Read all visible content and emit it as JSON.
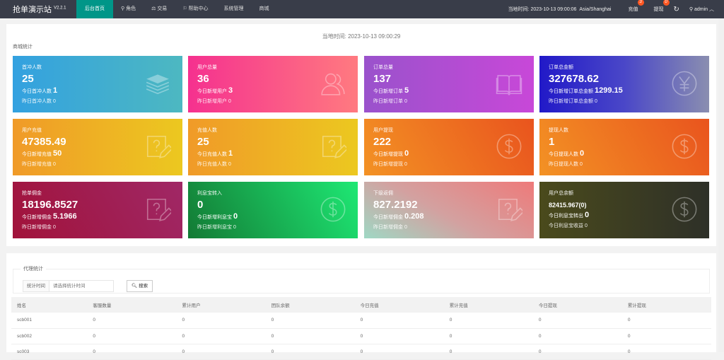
{
  "nav": {
    "brand": "抢单演示站",
    "version": "V2.2.1",
    "menu": [
      "后台首页",
      "角色",
      "交易",
      "帮助中心",
      "系统管理",
      "商城"
    ],
    "time": "当地时间: 2023-10-13 09:00:06",
    "tz": "Asia/Shanghai",
    "recharge": "充值",
    "recharge_badge": "3",
    "withdraw": "提现",
    "withdraw_badge": "0",
    "user": "admin"
  },
  "main": {
    "local_time": "当地时间:  2023-10-13 09:00:29",
    "section": "商城统计"
  },
  "cards": [
    {
      "title": "首冲人数",
      "value": "25",
      "l1": "今日首冲人数",
      "l1v": "1",
      "l2": "昨日首冲人数 0",
      "icon": "layers",
      "bg": "linear-gradient(90deg,#33a1e0,#4db8c1)"
    },
    {
      "title": "用户总量",
      "value": "36",
      "l1": "今日新增用户",
      "l1v": "3",
      "l2": "昨日新增用户 0",
      "icon": "users",
      "bg": "linear-gradient(90deg,#f5318f,#ff7a80)"
    },
    {
      "title": "订单总量",
      "value": "137",
      "l1": "今日新增订单",
      "l1v": "5",
      "l2": "昨日新增订单 0",
      "icon": "book",
      "bg": "linear-gradient(90deg,#9a52cc,#c848d8)"
    },
    {
      "title": "订单总金额",
      "value": "327678.62",
      "l1": "今日新增订单总金额",
      "l1v": "1299.15",
      "l2": "昨日新增订单总金额 0",
      "icon": "yen",
      "bg": "linear-gradient(90deg,#2119c8,#4a47c8 50%,#8a8eb0)"
    },
    {
      "title": "用户充值",
      "value": "47385.49",
      "l1": "今日新增充值",
      "l1v": "50",
      "l2": "昨日新增充值 0",
      "icon": "note",
      "bg": "linear-gradient(90deg,#f09a28,#ecc820)"
    },
    {
      "title": "充值人数",
      "value": "25",
      "l1": "今日充值人数",
      "l1v": "1",
      "l2": "昨日充值人数 0",
      "icon": "note",
      "bg": "linear-gradient(90deg,#f09a28,#ecc820)"
    },
    {
      "title": "用户提现",
      "value": "222",
      "l1": "今日新增提现",
      "l1v": "0",
      "l2": "昨日新增提现 0",
      "icon": "dollar",
      "bg": "linear-gradient(60deg,#f39224,#e9541e)"
    },
    {
      "title": "提现人数",
      "value": "1",
      "l1": "今日提现人数",
      "l1v": "0",
      "l2": "昨日提现人数 0",
      "icon": "dollar",
      "bg": "linear-gradient(60deg,#f39224,#e9541e)"
    },
    {
      "title": "抢单佣金",
      "value": "18196.8527",
      "l1": "今日新增佣金",
      "l1v": "5.1966",
      "l2": "昨日新增佣金 0",
      "icon": "note",
      "bg": "linear-gradient(60deg,#a1123a,#a02866)"
    },
    {
      "title": "利息宝转入",
      "value": "0",
      "l1": "今日新增利息宝",
      "l1v": "0",
      "l2": "昨日新增利息宝 0",
      "icon": "dollar",
      "bg": "linear-gradient(60deg,#137a34,#1ee874)"
    },
    {
      "title": "下级返佣",
      "value": "827.2192",
      "l1": "今日新增佣金",
      "l1v": "0.208",
      "l2": "昨日新增佣金 0",
      "icon": "note",
      "bg": "linear-gradient(30deg,#9fd8c4,#d3a1a0 45%,#ee7a7a)"
    },
    {
      "title": "用户总余额",
      "value": "82415.967(0)",
      "l1": "今日利息宝转出",
      "l1v": "0",
      "l2": "今日利息宝收益 0",
      "icon": "dollar",
      "bg": "linear-gradient(90deg,#4a4a1c,#2e3028)",
      "small": true
    }
  ],
  "agent": {
    "legend": "代理统计",
    "label": "统计时间",
    "placeholder": "请选择统计时间",
    "search": "搜索",
    "headers": [
      "姓名",
      "客服数量",
      "累计用户",
      "团队余额",
      "今日充值",
      "累计充值",
      "今日提现",
      "累计提现"
    ],
    "rows": [
      [
        "scb001",
        "0",
        "0",
        "0",
        "0",
        "0",
        "0",
        "0"
      ],
      [
        "scb002",
        "0",
        "0",
        "0",
        "0",
        "0",
        "0",
        "0"
      ],
      [
        "sc003",
        "0",
        "0",
        "0",
        "0",
        "0",
        "0",
        "0"
      ]
    ]
  }
}
